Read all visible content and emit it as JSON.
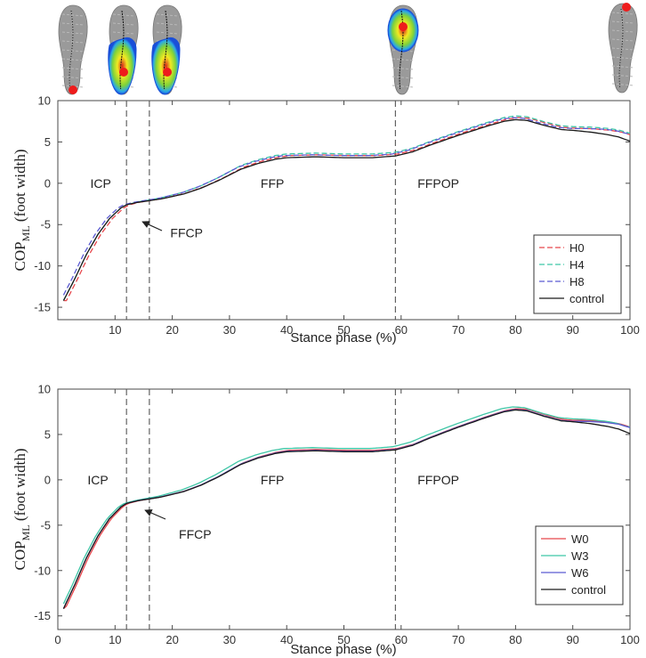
{
  "chart_data": [
    {
      "type": "line",
      "id": "panel-a",
      "xlabel": "Stance phase (%)",
      "ylabel_main": "COP",
      "ylabel_sub": "ML",
      "ylabel_tail": " (foot width)",
      "xlim": [
        0,
        100
      ],
      "ylim": [
        -16.5,
        10
      ],
      "xticks": [
        10,
        20,
        30,
        40,
        50,
        60,
        70,
        80,
        90,
        100
      ],
      "yticks": [
        10,
        5,
        0,
        -5,
        -10,
        -15
      ],
      "phase_lines": [
        12,
        16,
        59
      ],
      "phase_labels": [
        {
          "text": "ICP",
          "x": 7.5,
          "y": 0
        },
        {
          "text": "FFP",
          "x": 37.5,
          "y": 0
        },
        {
          "text": "FFPOP",
          "x": 66.5,
          "y": 0
        },
        {
          "text": "FFCP",
          "x": 22.5,
          "y": -6
        }
      ],
      "legend": "bottom-right",
      "series": [
        {
          "name": "H0",
          "color": "#e8474c",
          "dash": "dashed",
          "dx": 0.5,
          "dy": 0.25,
          "tail": 5.5
        },
        {
          "name": "H4",
          "color": "#3fc6a6",
          "dash": "dashed",
          "dx": 0,
          "dy": 0.45,
          "tail": 5.6
        },
        {
          "name": "H8",
          "color": "#5a5ad2",
          "dash": "dashed",
          "dx": -0.5,
          "dy": 0.25,
          "tail": 5.8
        },
        {
          "name": "control",
          "color": "#1a1a1a",
          "dash": "solid",
          "dx": 0,
          "dy": 0,
          "tail": 5.1
        }
      ]
    },
    {
      "type": "line",
      "id": "panel-b",
      "xlabel": "Stance phase (%)",
      "ylabel_main": "COP",
      "ylabel_sub": "ML",
      "ylabel_tail": " (foot width)",
      "xlim": [
        0,
        100
      ],
      "ylim": [
        -16.5,
        10
      ],
      "xticks": [
        0,
        10,
        20,
        30,
        40,
        50,
        60,
        70,
        80,
        90,
        100
      ],
      "yticks": [
        10,
        5,
        0,
        -5,
        -10,
        -15
      ],
      "phase_lines": [
        12,
        16,
        59
      ],
      "phase_labels": [
        {
          "text": "ICP",
          "x": 7,
          "y": 0
        },
        {
          "text": "FFP",
          "x": 37.5,
          "y": 0
        },
        {
          "text": "FFPOP",
          "x": 66.5,
          "y": 0
        },
        {
          "text": "FFCP",
          "x": 24,
          "y": -6
        }
      ],
      "legend": "bottom-right",
      "series": [
        {
          "name": "W0",
          "color": "#e8474c",
          "dash": "solid",
          "dx": 0.3,
          "dy": 0.15,
          "tail": 5.6
        },
        {
          "name": "W3",
          "color": "#3fc6a6",
          "dash": "solid",
          "dx": -0.4,
          "dy": 0.35,
          "tail": 5.5
        },
        {
          "name": "W6",
          "color": "#5a5ad2",
          "dash": "solid",
          "dx": 0,
          "dy": 0.05,
          "tail": 5.7
        },
        {
          "name": "control",
          "color": "#1a1a1a",
          "dash": "solid",
          "dx": 0,
          "dy": 0,
          "tail": 5.1
        }
      ]
    }
  ],
  "base_curve": {
    "x": [
      1,
      3,
      5,
      7,
      9,
      11,
      12,
      14,
      16,
      18,
      20,
      22,
      25,
      28,
      30,
      32,
      35,
      38,
      40,
      45,
      50,
      55,
      59,
      62,
      65,
      70,
      75,
      78,
      80,
      82,
      85,
      88,
      90,
      93,
      96,
      98,
      100
    ],
    "y": [
      -14.2,
      -11.5,
      -8.6,
      -6.2,
      -4.3,
      -3.0,
      -2.6,
      -2.3,
      -2.1,
      -1.9,
      -1.6,
      -1.3,
      -0.6,
      0.3,
      1.0,
      1.7,
      2.4,
      2.9,
      3.1,
      3.2,
      3.1,
      3.1,
      3.3,
      3.8,
      4.6,
      5.8,
      6.9,
      7.5,
      7.7,
      7.6,
      7.0,
      6.5,
      6.4,
      6.2,
      5.9,
      5.6,
      5.1
    ]
  },
  "insoles": [
    {
      "name": "insole-initial-contact",
      "heat": "none",
      "cop": "heel"
    },
    {
      "name": "insole-forefoot-contact-a",
      "heat": "heel-and-mid",
      "cop": "mid"
    },
    {
      "name": "insole-forefoot-contact-b",
      "heat": "heel-and-mid",
      "cop": "mid"
    },
    {
      "name": "insole-forefoot-push-off",
      "heat": "forefoot",
      "cop": "forefoot"
    },
    {
      "name": "insole-toe-off",
      "heat": "none",
      "cop": "toe"
    }
  ]
}
